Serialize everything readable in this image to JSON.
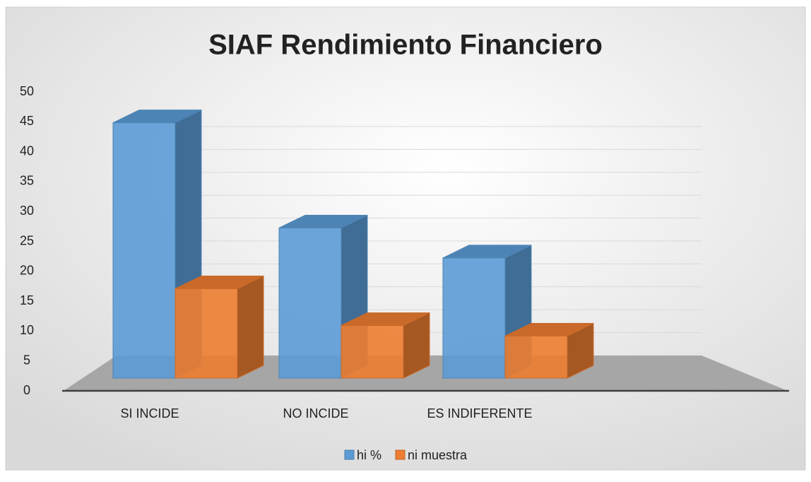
{
  "chart_data": {
    "type": "bar3d",
    "title": "SIAF Rendimiento  Financiero",
    "categories": [
      "SI INCIDE",
      "NO INCIDE",
      "ES INDIFERENTE"
    ],
    "series": [
      {
        "name": "hi %",
        "color": "#5b9bd5",
        "values": [
          48.57,
          28.57,
          22.86
        ]
      },
      {
        "name": "ni muestra",
        "color": "#ed7d31",
        "values": [
          17,
          10,
          8
        ]
      }
    ],
    "ylim": [
      0,
      50
    ],
    "yticks": [
      0,
      5,
      10,
      15,
      20,
      25,
      30,
      35,
      40,
      45,
      50
    ],
    "grid": true,
    "legend": "bottom"
  }
}
